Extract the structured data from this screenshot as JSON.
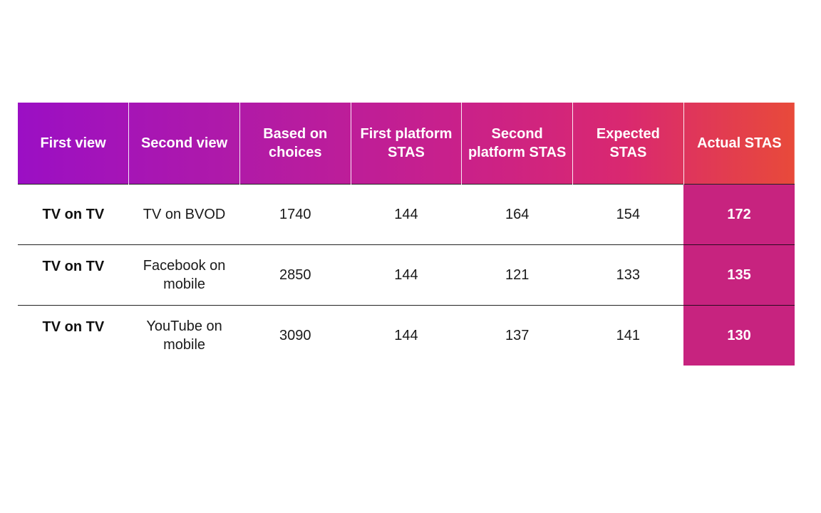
{
  "table": {
    "headers": [
      "First view",
      "Second view",
      "Based on choices",
      "First platform STAS",
      "Second platform STAS",
      "Expected STAS",
      "Actual STAS"
    ],
    "rows": [
      [
        "TV on TV",
        "TV on BVOD",
        "1740",
        "144",
        "164",
        "154",
        "172"
      ],
      [
        "TV on TV",
        "Facebook on mobile",
        "2850",
        "144",
        "121",
        "133",
        "135"
      ],
      [
        "TV on TV",
        "YouTube on mobile",
        "3090",
        "144",
        "137",
        "141",
        "130"
      ]
    ]
  },
  "colors": {
    "header_gradient_start": "#9b0fc4",
    "header_gradient_end": "#e84a3a",
    "actual_highlight": "#c7237f"
  }
}
